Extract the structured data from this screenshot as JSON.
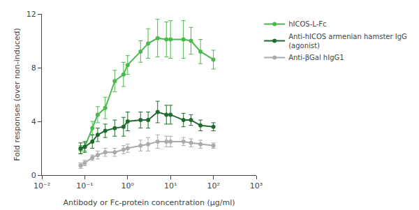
{
  "chart_data": {
    "type": "line",
    "xlabel": "Antibody or Fc-protein concentration (µg/ml)",
    "ylabel": "Fold responses (over non-induced)",
    "log": "x",
    "xlim": [
      0.01,
      1000
    ],
    "xticks": [
      {
        "value": 0.01,
        "label": "10⁻²"
      },
      {
        "value": 0.1,
        "label": "10⁻¹"
      },
      {
        "value": 1,
        "label": "10⁰"
      },
      {
        "value": 10,
        "label": "10¹"
      },
      {
        "value": 100,
        "label": "10²"
      },
      {
        "value": 1000,
        "label": "10³"
      }
    ],
    "ylim": [
      0,
      12
    ],
    "yticks": [
      0,
      4,
      8,
      12
    ],
    "grid": false,
    "legend": "right",
    "marker": "circle",
    "x": [
      0.08,
      0.1,
      0.15,
      0.2,
      0.3,
      0.5,
      0.8,
      1.0,
      2.0,
      3.0,
      5.0,
      8.0,
      10.0,
      20.0,
      30.0,
      50.0,
      100.0
    ],
    "series": [
      {
        "name": "hICOS-L-Fc",
        "color": "#4db84d",
        "values": [
          1.9,
          2.1,
          3.5,
          4.5,
          5.0,
          7.0,
          7.5,
          8.2,
          9.2,
          9.8,
          10.2,
          10.1,
          10.1,
          10.1,
          10.0,
          9.2,
          8.6
        ],
        "yerr": [
          0.3,
          0.3,
          0.5,
          0.6,
          0.8,
          0.8,
          0.9,
          0.7,
          0.8,
          1.1,
          1.4,
          1.3,
          1.4,
          1.4,
          1.0,
          0.9,
          0.7
        ]
      },
      {
        "name": "Anti-hICOS armenian hamster IgG\n(agonist)",
        "color": "#1f6b2e",
        "values": [
          2.0,
          2.1,
          2.5,
          3.0,
          3.3,
          3.5,
          3.6,
          4.0,
          4.1,
          4.1,
          4.7,
          4.5,
          4.5,
          4.1,
          4.1,
          3.7,
          3.6
        ],
        "yerr": [
          0.4,
          0.4,
          0.5,
          0.5,
          0.5,
          0.6,
          0.7,
          0.7,
          0.6,
          0.6,
          0.8,
          0.7,
          0.7,
          0.5,
          0.4,
          0.4,
          0.3
        ]
      },
      {
        "name": "Anti-βGal hIgG1",
        "color": "#aaaaaa",
        "values": [
          0.7,
          0.9,
          1.3,
          1.5,
          1.7,
          1.7,
          1.9,
          2.0,
          2.2,
          2.3,
          2.5,
          2.5,
          2.5,
          2.5,
          2.4,
          2.3,
          2.2
        ],
        "yerr": [
          0.2,
          0.2,
          0.2,
          0.3,
          0.3,
          0.3,
          0.3,
          0.3,
          0.4,
          0.5,
          0.5,
          0.4,
          0.4,
          0.3,
          0.3,
          0.3,
          0.2
        ]
      }
    ]
  }
}
